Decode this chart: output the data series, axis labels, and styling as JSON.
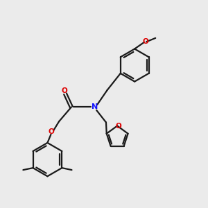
{
  "bg_color": "#ebebeb",
  "bond_color": "#1a1a1a",
  "N_color": "#1010ff",
  "O_color": "#dd0000",
  "line_width": 1.6,
  "figsize": [
    3.0,
    3.0
  ],
  "dpi": 100,
  "xlim": [
    0,
    10
  ],
  "ylim": [
    0,
    10
  ]
}
